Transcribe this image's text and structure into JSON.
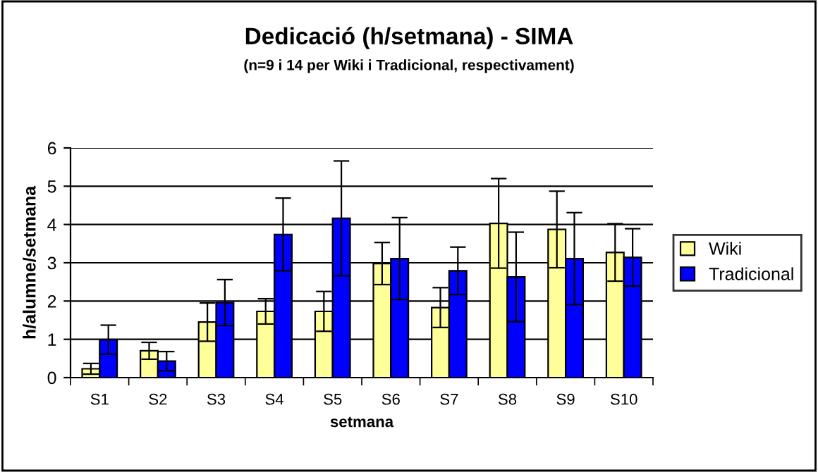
{
  "chart_data": {
    "type": "bar",
    "title": "Dedicació (h/setmana) - SIMA",
    "subtitle": "(n=9 i 14 per Wiki i Tradicional, respectivament)",
    "xlabel": "setmana",
    "ylabel": "h/alumne/setmana",
    "categories": [
      "S1",
      "S2",
      "S3",
      "S4",
      "S5",
      "S6",
      "S7",
      "S8",
      "S9",
      "S10"
    ],
    "series": [
      {
        "name": "Wiki",
        "color": "#ffff99",
        "values": [
          0.23,
          0.7,
          1.45,
          1.73,
          1.73,
          2.98,
          1.83,
          4.03,
          3.87,
          3.27
        ],
        "errors": [
          0.14,
          0.22,
          0.5,
          0.33,
          0.52,
          0.55,
          0.52,
          1.17,
          1.0,
          0.75
        ]
      },
      {
        "name": "Tradicional",
        "color": "#0000ff",
        "values": [
          0.99,
          0.43,
          1.96,
          3.74,
          4.16,
          3.11,
          2.79,
          2.63,
          3.11,
          3.14
        ],
        "errors": [
          0.38,
          0.25,
          0.6,
          0.95,
          1.5,
          1.07,
          0.62,
          1.17,
          1.2,
          0.75
        ]
      }
    ],
    "ylim": [
      0,
      6
    ],
    "yticks": [
      0,
      1,
      2,
      3,
      4,
      5,
      6
    ],
    "grid": "y",
    "legend": "right"
  }
}
